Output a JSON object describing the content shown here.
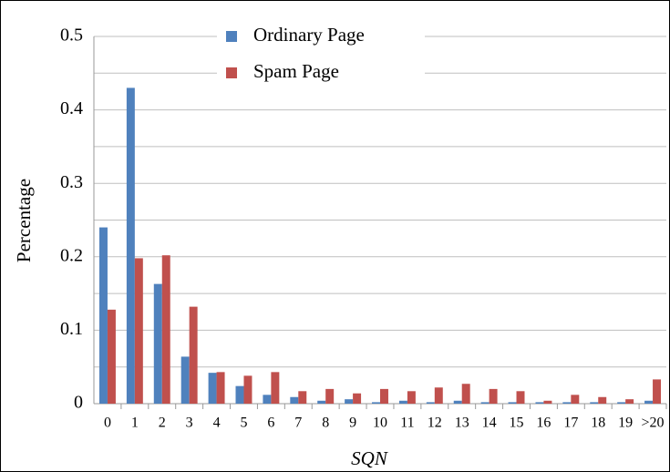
{
  "chart_data": {
    "type": "bar",
    "x_label": "SQN",
    "y_label": "Percentage",
    "categories": [
      "0",
      "1",
      "2",
      "3",
      "4",
      "5",
      "6",
      "7",
      "8",
      "9",
      "10",
      "11",
      "12",
      "13",
      "14",
      "15",
      "16",
      "17",
      "18",
      "19",
      ">20"
    ],
    "series": [
      {
        "name": "Ordinary Page",
        "color": "#4f81bd",
        "values": [
          0.24,
          0.43,
          0.163,
          0.064,
          0.042,
          0.024,
          0.012,
          0.009,
          0.004,
          0.006,
          0.002,
          0.004,
          0.002,
          0.004,
          0.002,
          0.002,
          0.002,
          0.002,
          0.002,
          0.002,
          0.004
        ]
      },
      {
        "name": "Spam Page",
        "color": "#c0504d",
        "values": [
          0.128,
          0.198,
          0.202,
          0.132,
          0.043,
          0.038,
          0.043,
          0.017,
          0.02,
          0.014,
          0.02,
          0.017,
          0.022,
          0.027,
          0.02,
          0.017,
          0.004,
          0.012,
          0.009,
          0.006,
          0.033
        ]
      }
    ],
    "ylim": [
      0,
      0.5
    ],
    "yticks": [
      0,
      0.1,
      0.2,
      0.3,
      0.4,
      0.5
    ],
    "minor_grid": [
      0.05,
      0.15,
      0.25,
      0.35,
      0.45
    ],
    "grid": true,
    "legend": "top"
  }
}
